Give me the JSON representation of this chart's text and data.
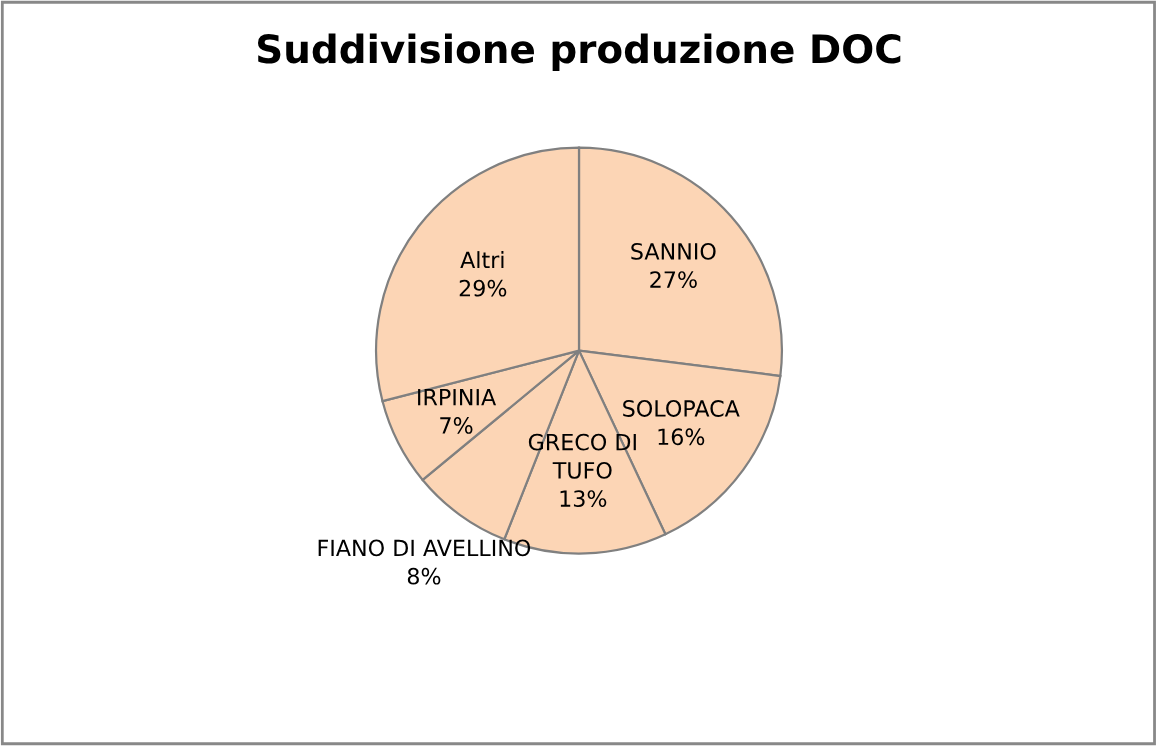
{
  "chart_data": {
    "type": "pie",
    "title": "Suddivisione produzione DOC",
    "categories": [
      "SANNIO",
      "SOLOPACA",
      "GRECO DI TUFO",
      "FIANO DI AVELLINO",
      "IRPINIA",
      "Altri"
    ],
    "values": [
      27,
      16,
      13,
      8,
      7,
      29
    ],
    "colors": [
      "#fcd5b5",
      "#fcd5b5",
      "#fcd5b5",
      "#fcd5b5",
      "#fcd5b5",
      "#fcd5b5"
    ],
    "value_labels": [
      "27%",
      "16%",
      "13%",
      "8%",
      "7%",
      "29%"
    ],
    "legend": false
  }
}
